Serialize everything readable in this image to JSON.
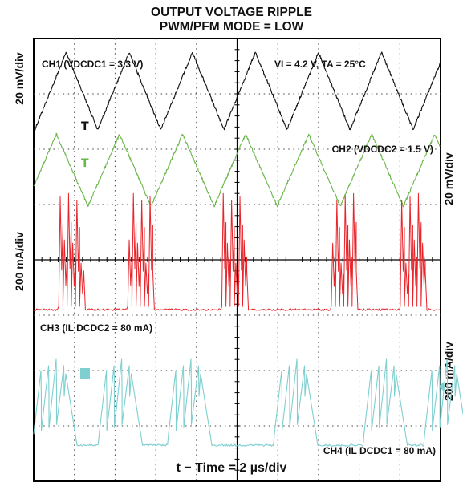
{
  "title": "OUTPUT VOLTAGE RIPPLE",
  "subtitle": "PWM/PFM MODE = LOW",
  "xlabel": "t − Time = 2 µs/div",
  "left_axis": {
    "upper": "20 mV/div",
    "lower": "200 mA/div"
  },
  "right_axis": {
    "upper": "20 mV/div",
    "lower": "200 mA/div"
  },
  "annotations": {
    "ch1": "CH1 (VDCDC1 = 3.3 V)",
    "conditions": "VI = 4.2 V,  TA = 25°C",
    "ch2": "CH2 (VDCDC2 = 1.5 V)",
    "ch3": "CH3 (IL DCDC2 = 80 mA)",
    "ch4": "CH4 (IL DCDC1 = 80 mA)"
  },
  "colors": {
    "ch1": "#111111",
    "ch2": "#6ab64a",
    "ch3": "#e8242a",
    "ch4": "#7fcfd0",
    "grid": "#444444",
    "frame": "#000000"
  },
  "chart_data": {
    "type": "line",
    "title": "OUTPUT VOLTAGE RIPPLE",
    "subtitle": "PWM/PFM MODE = LOW",
    "xlabel": "t − Time = 2 µs/div",
    "x_divisions": 10,
    "y_divisions": 8,
    "grid": true,
    "series": [
      {
        "name": "CH1 (VDCDC1 = 3.3 V)",
        "scale": "20 mV/div",
        "waveform": "triangle ripple",
        "period_div": 1.55,
        "peak_to_peak_div": 1.4
      },
      {
        "name": "CH2 (VDCDC2 = 1.5 V)",
        "scale": "20 mV/div",
        "waveform": "triangle ripple",
        "period_div": 1.55,
        "peak_to_peak_div": 1.3
      },
      {
        "name": "CH3 (IL DCDC2 = 80 mA)",
        "scale": "200 mA/div",
        "waveform": "PFM burst pulses",
        "bursts_x_div": [
          0.6,
          2.3,
          4.6,
          7.3,
          9.0
        ]
      },
      {
        "name": "CH4 (IL DCDC1 = 80 mA)",
        "scale": "200 mA/div",
        "waveform": "PFM burst sawtooth",
        "bursts_x_div": [
          0.0,
          1.6,
          3.3,
          5.9,
          8.1,
          9.6
        ]
      }
    ]
  }
}
